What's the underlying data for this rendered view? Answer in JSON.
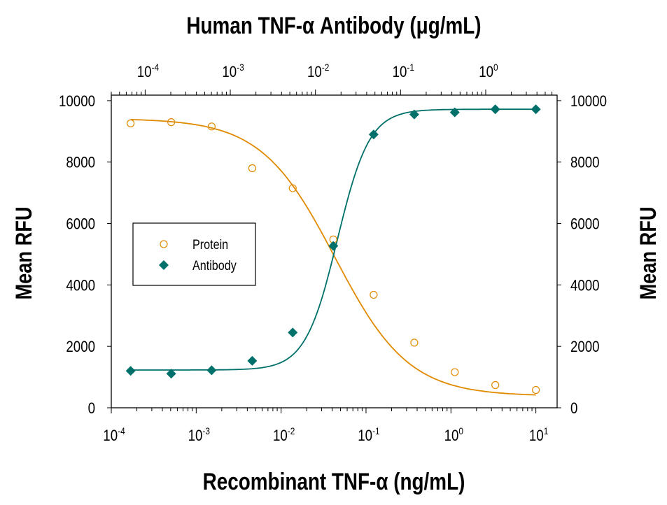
{
  "chart_data": {
    "type": "scatter",
    "title_top_axis": "Human TNF-α Antibody (μg/mL)",
    "xlabel": "Recombinant TNF-α (ng/mL)",
    "ylabel_left": "Mean RFU",
    "ylabel_right": "Mean RFU",
    "x_scale": "log",
    "xlim": [
      0.0001,
      17.8
    ],
    "top_xlim": [
      4e-05,
      6.9
    ],
    "ylim": [
      0,
      10180
    ],
    "x_ticks": [
      {
        "value": 0.0001,
        "base": "10",
        "exp": "-4"
      },
      {
        "value": 0.001,
        "base": "10",
        "exp": "-3"
      },
      {
        "value": 0.01,
        "base": "10",
        "exp": "-2"
      },
      {
        "value": 0.1,
        "base": "10",
        "exp": "-1"
      },
      {
        "value": 1,
        "base": "10",
        "exp": "0"
      },
      {
        "value": 10,
        "base": "10",
        "exp": "1"
      }
    ],
    "top_x_ticks": [
      {
        "value": 0.0001,
        "base": "10",
        "exp": "-4"
      },
      {
        "value": 0.001,
        "base": "10",
        "exp": "-3"
      },
      {
        "value": 0.01,
        "base": "10",
        "exp": "-2"
      },
      {
        "value": 0.1,
        "base": "10",
        "exp": "-1"
      },
      {
        "value": 1,
        "base": "10",
        "exp": "0"
      }
    ],
    "y_ticks": [
      "0",
      "2000",
      "4000",
      "6000",
      "8000",
      "10000"
    ],
    "grid": false,
    "legend": "center-left",
    "x": [
      0.000169,
      0.000508,
      0.00152,
      0.00457,
      0.0137,
      0.0412,
      0.123,
      0.37,
      1.11,
      3.33,
      10
    ],
    "series": [
      {
        "name": "Protein",
        "marker": "open-circle",
        "color": "#E08A00",
        "values": [
          9260,
          9300,
          9160,
          7800,
          7150,
          5480,
          3680,
          2120,
          1160,
          740,
          580
        ]
      },
      {
        "name": "Antibody",
        "marker": "filled-diamond",
        "color": "#00706A",
        "values": [
          1200,
          1110,
          1220,
          1530,
          2450,
          5270,
          8900,
          9550,
          9620,
          9720,
          9720
        ]
      }
    ]
  }
}
